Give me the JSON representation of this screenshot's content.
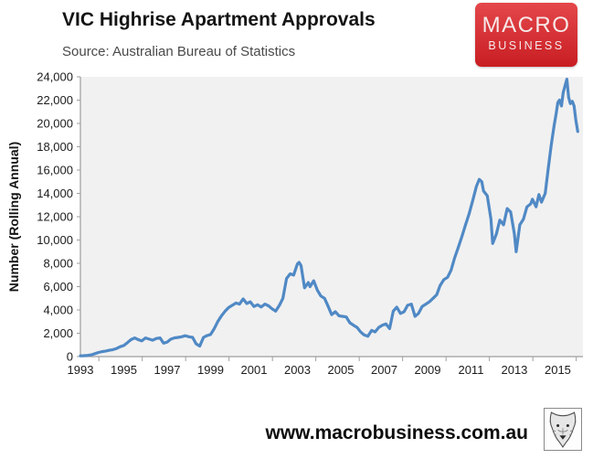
{
  "header": {
    "title": "VIC Highrise Apartment Approvals",
    "source": "Source: Australian Bureau of Statistics",
    "logo": {
      "line1": "MACRO",
      "line2": "BUSINESS",
      "bg_top": "#e4474b",
      "bg_bottom": "#c81e23"
    }
  },
  "footer": {
    "url": "www.macrobusiness.com.au",
    "logo_icon": "wolf-head-icon"
  },
  "chart_data": {
    "type": "line",
    "title": "VIC Highrise Apartment Approvals",
    "xlabel": "",
    "ylabel": "Number (Rolling Annual)",
    "xlim": [
      1993,
      2016.16
    ],
    "ylim": [
      0,
      24000
    ],
    "grid": false,
    "legend": false,
    "plot_bg": "#f1f1f1",
    "axis_color": "#9e9e9e",
    "line_color": "#5089c5",
    "x_tick_labels": [
      "1993",
      "1995",
      "1997",
      "1999",
      "2001",
      "2003",
      "2005",
      "2007",
      "2009",
      "2011",
      "2013",
      "2015"
    ],
    "y_tick_labels": [
      "0",
      "2,000",
      "4,000",
      "6,000",
      "8,000",
      "10,000",
      "12,000",
      "14,000",
      "16,000",
      "18,000",
      "20,000",
      "22,000",
      "24,000"
    ],
    "series": [
      {
        "name": "VIC highrise apartment approvals (rolling annual)",
        "points": [
          [
            1993.0,
            60
          ],
          [
            1993.17,
            80
          ],
          [
            1993.33,
            100
          ],
          [
            1993.5,
            150
          ],
          [
            1993.67,
            250
          ],
          [
            1993.83,
            350
          ],
          [
            1994.0,
            420
          ],
          [
            1994.17,
            480
          ],
          [
            1994.33,
            540
          ],
          [
            1994.5,
            600
          ],
          [
            1994.67,
            700
          ],
          [
            1994.83,
            850
          ],
          [
            1995.0,
            950
          ],
          [
            1995.17,
            1200
          ],
          [
            1995.33,
            1450
          ],
          [
            1995.5,
            1600
          ],
          [
            1995.67,
            1450
          ],
          [
            1995.83,
            1350
          ],
          [
            1996.0,
            1600
          ],
          [
            1996.17,
            1500
          ],
          [
            1996.33,
            1400
          ],
          [
            1996.5,
            1550
          ],
          [
            1996.67,
            1600
          ],
          [
            1996.83,
            1150
          ],
          [
            1997.0,
            1250
          ],
          [
            1997.17,
            1500
          ],
          [
            1997.33,
            1600
          ],
          [
            1997.5,
            1650
          ],
          [
            1997.67,
            1700
          ],
          [
            1997.83,
            1800
          ],
          [
            1998.0,
            1700
          ],
          [
            1998.17,
            1650
          ],
          [
            1998.33,
            1100
          ],
          [
            1998.5,
            900
          ],
          [
            1998.67,
            1650
          ],
          [
            1998.83,
            1800
          ],
          [
            1999.0,
            1900
          ],
          [
            1999.17,
            2400
          ],
          [
            1999.33,
            3000
          ],
          [
            1999.5,
            3500
          ],
          [
            1999.67,
            3900
          ],
          [
            1999.83,
            4200
          ],
          [
            2000.0,
            4400
          ],
          [
            2000.17,
            4600
          ],
          [
            2000.33,
            4500
          ],
          [
            2000.5,
            4950
          ],
          [
            2000.67,
            4550
          ],
          [
            2000.83,
            4700
          ],
          [
            2001.0,
            4300
          ],
          [
            2001.17,
            4450
          ],
          [
            2001.33,
            4250
          ],
          [
            2001.5,
            4500
          ],
          [
            2001.67,
            4350
          ],
          [
            2001.83,
            4100
          ],
          [
            2002.0,
            3900
          ],
          [
            2002.17,
            4400
          ],
          [
            2002.33,
            5000
          ],
          [
            2002.5,
            6700
          ],
          [
            2002.67,
            7100
          ],
          [
            2002.83,
            7000
          ],
          [
            2003.0,
            7950
          ],
          [
            2003.08,
            8080
          ],
          [
            2003.17,
            7800
          ],
          [
            2003.33,
            5900
          ],
          [
            2003.5,
            6350
          ],
          [
            2003.58,
            6000
          ],
          [
            2003.75,
            6500
          ],
          [
            2003.92,
            5700
          ],
          [
            2004.08,
            5200
          ],
          [
            2004.25,
            5000
          ],
          [
            2004.42,
            4300
          ],
          [
            2004.58,
            3600
          ],
          [
            2004.75,
            3850
          ],
          [
            2004.92,
            3500
          ],
          [
            2005.08,
            3450
          ],
          [
            2005.25,
            3400
          ],
          [
            2005.42,
            2900
          ],
          [
            2005.58,
            2700
          ],
          [
            2005.75,
            2500
          ],
          [
            2005.92,
            2100
          ],
          [
            2006.08,
            1850
          ],
          [
            2006.25,
            1750
          ],
          [
            2006.42,
            2250
          ],
          [
            2006.58,
            2120
          ],
          [
            2006.75,
            2500
          ],
          [
            2006.92,
            2700
          ],
          [
            2007.08,
            2800
          ],
          [
            2007.25,
            2400
          ],
          [
            2007.42,
            3900
          ],
          [
            2007.58,
            4240
          ],
          [
            2007.75,
            3700
          ],
          [
            2007.92,
            3850
          ],
          [
            2008.08,
            4400
          ],
          [
            2008.25,
            4500
          ],
          [
            2008.42,
            3450
          ],
          [
            2008.58,
            3700
          ],
          [
            2008.75,
            4300
          ],
          [
            2008.92,
            4500
          ],
          [
            2009.08,
            4700
          ],
          [
            2009.25,
            5000
          ],
          [
            2009.42,
            5300
          ],
          [
            2009.58,
            6100
          ],
          [
            2009.75,
            6600
          ],
          [
            2009.92,
            6800
          ],
          [
            2010.08,
            7400
          ],
          [
            2010.25,
            8500
          ],
          [
            2010.42,
            9400
          ],
          [
            2010.58,
            10300
          ],
          [
            2010.75,
            11300
          ],
          [
            2010.92,
            12300
          ],
          [
            2011.08,
            13400
          ],
          [
            2011.25,
            14600
          ],
          [
            2011.38,
            15200
          ],
          [
            2011.5,
            15000
          ],
          [
            2011.58,
            14200
          ],
          [
            2011.75,
            13800
          ],
          [
            2011.92,
            11800
          ],
          [
            2012.0,
            9700
          ],
          [
            2012.17,
            10500
          ],
          [
            2012.33,
            11700
          ],
          [
            2012.5,
            11300
          ],
          [
            2012.67,
            12700
          ],
          [
            2012.83,
            12400
          ],
          [
            2013.0,
            10500
          ],
          [
            2013.08,
            9000
          ],
          [
            2013.25,
            11300
          ],
          [
            2013.42,
            11800
          ],
          [
            2013.58,
            12850
          ],
          [
            2013.75,
            13100
          ],
          [
            2013.83,
            13500
          ],
          [
            2014.0,
            12850
          ],
          [
            2014.13,
            13900
          ],
          [
            2014.25,
            13250
          ],
          [
            2014.42,
            14000
          ],
          [
            2014.55,
            16000
          ],
          [
            2014.7,
            18150
          ],
          [
            2014.83,
            19800
          ],
          [
            2014.92,
            20800
          ],
          [
            2015.0,
            21800
          ],
          [
            2015.08,
            22000
          ],
          [
            2015.17,
            21500
          ],
          [
            2015.25,
            22650
          ],
          [
            2015.42,
            23800
          ],
          [
            2015.5,
            22250
          ],
          [
            2015.58,
            21700
          ],
          [
            2015.67,
            21900
          ],
          [
            2015.75,
            21500
          ],
          [
            2015.83,
            20300
          ],
          [
            2015.92,
            19300
          ]
        ]
      }
    ]
  }
}
